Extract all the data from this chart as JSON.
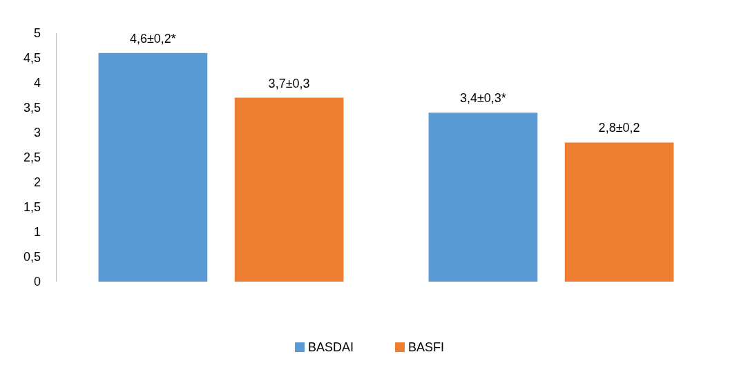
{
  "chart_data": {
    "type": "bar",
    "categories": [
      null,
      null
    ],
    "series": [
      {
        "name": "BASDAI",
        "color": "#5b9bd5",
        "values": [
          4.6,
          3.4
        ],
        "value_labels": [
          "4,6±0,2*",
          "3,4±0,3*"
        ]
      },
      {
        "name": "BASFI",
        "color": "#ed7d31",
        "values": [
          3.7,
          2.8
        ],
        "value_labels": [
          "3,7±0,3",
          "2,8±0,2"
        ]
      }
    ],
    "ylim": [
      0,
      5
    ],
    "yticks": [
      0,
      {
        "value": 0.5,
        "label": "0,5"
      },
      1,
      {
        "value": 1.5,
        "label": "1,5"
      },
      2,
      {
        "value": 2.5,
        "label": "2,5"
      },
      3,
      {
        "value": 3.5,
        "label": "3,5"
      },
      4,
      {
        "value": 4.5,
        "label": "4,5"
      },
      5
    ],
    "grid": false,
    "legend": "bottom"
  }
}
